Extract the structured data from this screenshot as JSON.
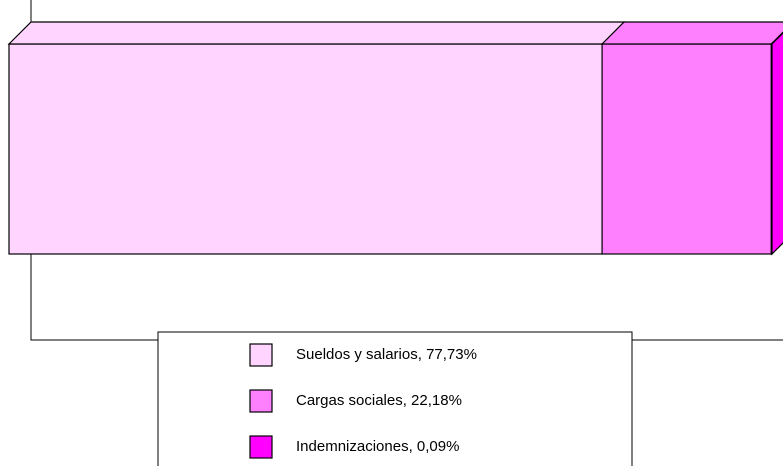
{
  "chart_data": {
    "type": "stacked_bar_3d_horizontal",
    "series": [
      {
        "name": "Sueldos y salarios, 77,73%",
        "color": "#ffd5ff",
        "values": [
          77.73
        ]
      },
      {
        "name": "Cargas sociales, 22,18%",
        "color": "#ff80ff",
        "values": [
          22.18
        ]
      },
      {
        "name": "Indemnizaciones, 0,09%",
        "color": "#ff00ff",
        "values": [
          0.09
        ]
      }
    ],
    "xlim": [
      0,
      100
    ],
    "legend": "bottom"
  }
}
